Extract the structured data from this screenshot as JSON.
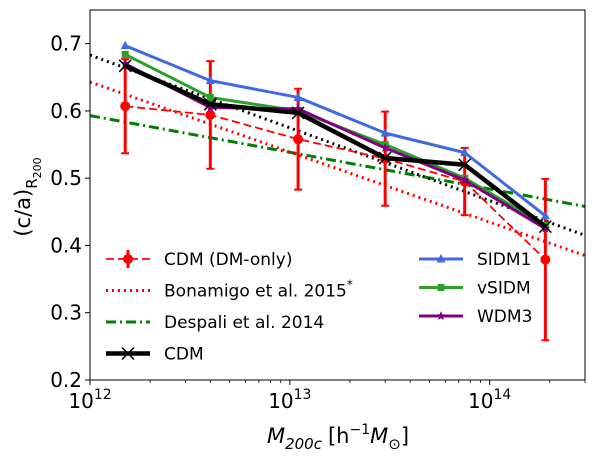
{
  "chart_data": {
    "type": "line",
    "xscale": "log",
    "xlim": [
      1000000000000.0,
      300000000000000.0
    ],
    "ylim": [
      0.2,
      0.75
    ],
    "xlabel": "M_200c [h^-1 M_⊙]",
    "ylabel": "(c/a)_R200",
    "xticks": [
      {
        "value": 1000000000000.0,
        "base": "10",
        "exp": "12"
      },
      {
        "value": 10000000000000.0,
        "base": "10",
        "exp": "13"
      },
      {
        "value": 100000000000000.0,
        "base": "10",
        "exp": "14"
      }
    ],
    "yticks": [
      0.2,
      0.3,
      0.4,
      0.5,
      0.6,
      0.7
    ],
    "legend_placement": "lower-left-and-lower-right (two columns)",
    "series": [
      {
        "name": "CDM (DM-only)",
        "color": "#ff0000",
        "style": "dashed",
        "marker": "circle",
        "errorbars": true,
        "x": [
          1500000000000.0,
          4000000000000.0,
          11000000000000.0,
          30000000000000.0,
          75000000000000.0,
          190000000000000.0
        ],
        "y": [
          0.607,
          0.594,
          0.558,
          0.529,
          0.495,
          0.379
        ],
        "yerr": [
          0.07,
          0.08,
          0.075,
          0.07,
          0.05,
          0.12
        ]
      },
      {
        "name": "Bonamigo et al. 2015*",
        "color": "#ff0000",
        "style": "dotted",
        "marker": "none",
        "x": [
          1000000000000.0,
          300000000000000.0
        ],
        "y": [
          0.643,
          0.385
        ]
      },
      {
        "name": "Despali et al. 2014",
        "color": "#008000",
        "style": "dashdot",
        "marker": "none",
        "x": [
          1000000000000.0,
          300000000000000.0
        ],
        "y": [
          0.593,
          0.458
        ]
      },
      {
        "name": "CDM",
        "color": "#000000",
        "style": "solid-thick",
        "marker": "x",
        "x": [
          1500000000000.0,
          4000000000000.0,
          11000000000000.0,
          30000000000000.0,
          75000000000000.0,
          190000000000000.0
        ],
        "y": [
          0.667,
          0.61,
          0.597,
          0.53,
          0.52,
          0.428
        ]
      },
      {
        "name": "CDM (fit)",
        "color": "#000000",
        "style": "dotted",
        "marker": "none",
        "legend": false,
        "x": [
          1000000000000.0,
          300000000000000.0
        ],
        "y": [
          0.683,
          0.415
        ]
      },
      {
        "name": "SIDM1",
        "color": "#4169e1",
        "style": "solid",
        "marker": "triangle",
        "x": [
          1500000000000.0,
          4000000000000.0,
          11000000000000.0,
          30000000000000.0,
          75000000000000.0,
          190000000000000.0
        ],
        "y": [
          0.697,
          0.645,
          0.62,
          0.567,
          0.538,
          0.444
        ]
      },
      {
        "name": "vSIDM",
        "color": "#2ca02c",
        "style": "solid",
        "marker": "square",
        "x": [
          1500000000000.0,
          4000000000000.0,
          11000000000000.0,
          30000000000000.0,
          75000000000000.0,
          190000000000000.0
        ],
        "y": [
          0.684,
          0.62,
          0.6,
          0.55,
          0.5,
          0.43
        ]
      },
      {
        "name": "WDM3",
        "color": "#800080",
        "style": "solid",
        "marker": "star",
        "x": [
          1500000000000.0,
          4000000000000.0,
          11000000000000.0,
          30000000000000.0,
          75000000000000.0,
          190000000000000.0
        ],
        "y": [
          0.67,
          0.605,
          0.603,
          0.545,
          0.497,
          0.425
        ]
      }
    ]
  },
  "legend": {
    "left": [
      {
        "label": "CDM (DM-only)",
        "series": 0
      },
      {
        "label": "Bonamigo et al. 2015",
        "sup": "*",
        "series": 1
      },
      {
        "label": "Despali et al. 2014",
        "series": 2
      },
      {
        "label": "CDM",
        "series": 3
      }
    ],
    "right": [
      {
        "label": "SIDM1",
        "series": 5
      },
      {
        "label": "vSIDM",
        "series": 6
      },
      {
        "label": "WDM3",
        "series": 7
      }
    ]
  },
  "axis_text": {
    "y_main": "(c/a)",
    "y_sub_R": "R",
    "y_sub_sub": "200",
    "x_M": "M",
    "x_sub": "200c",
    "x_open": "[h",
    "x_exp": "−1",
    "x_mid": "M",
    "x_sun": "⊙",
    "x_close": "]"
  }
}
